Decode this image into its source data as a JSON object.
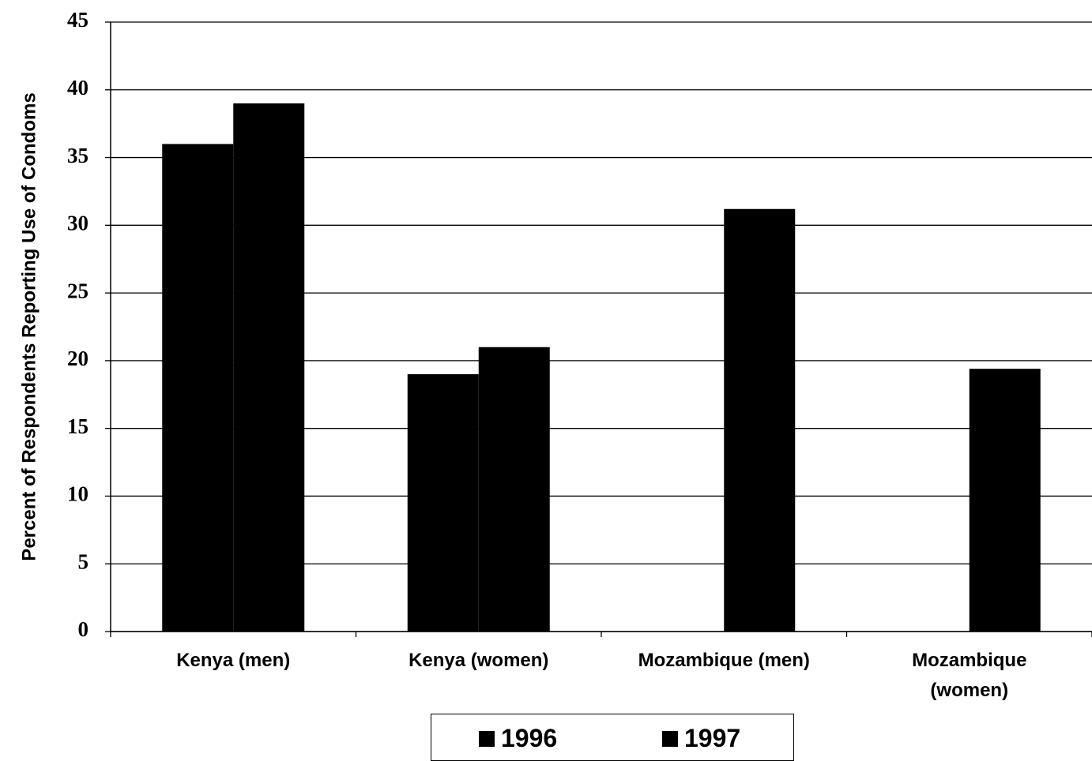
{
  "chart_data": {
    "type": "bar",
    "y_label": "Percent of Respondents Reporting Use of Condoms",
    "categories": [
      "Kenya (men)",
      "Kenya (women)",
      "Mozambique (men)",
      "Mozambique (women)"
    ],
    "series": [
      {
        "name": "1996",
        "color": "#000000",
        "values": [
          36,
          19,
          null,
          null
        ]
      },
      {
        "name": "1997",
        "color": "#000000",
        "values": [
          39,
          21,
          31.2,
          19.4
        ]
      }
    ],
    "ylim": [
      0,
      45
    ],
    "yticks": [
      0,
      5,
      10,
      15,
      20,
      25,
      30,
      35,
      40,
      45
    ],
    "grid": true
  }
}
